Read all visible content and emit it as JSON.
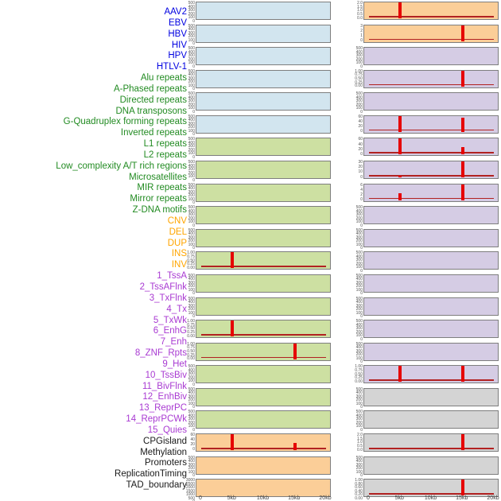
{
  "x_axis": {
    "ticks": [
      "0",
      "5kb",
      "10kb",
      "15kb",
      "20kb"
    ],
    "range_kb": [
      0,
      20
    ]
  },
  "colors": {
    "spike": "#e60000",
    "baseline": "#b22222",
    "panel_border": "#7e7e7e",
    "tick_text": "#555555",
    "categories": {
      "virus": {
        "label": "#0000e0",
        "panel": "#d2e5ef"
      },
      "repeat": {
        "label": "#228b22",
        "panel": "#cde0a2"
      },
      "variant": {
        "label": "#ffa500",
        "panel": "#fbce98"
      },
      "chromatin_state": {
        "label": "#a93ad2",
        "panel": "#d5cce4"
      },
      "other": {
        "label": "#1a1a1a",
        "panel": "#d4d4d4"
      }
    }
  },
  "chart_data": {
    "type": "bar",
    "description": "Genomic feature annotation tracks over a 0-20kb window; red bars mark feature hits near ~5kb and ~15kb; left column = tracks 1-22, right column = tracks 23-44",
    "x_ticks": [
      "0",
      "5kb",
      "10kb",
      "15kb",
      "20kb"
    ],
    "x_range_kb": [
      0,
      20
    ],
    "tracks": [
      {
        "label": "AAV2",
        "category": "virus",
        "column": "left",
        "yticks": [
          "500",
          "400",
          "300",
          "200",
          "100",
          "0"
        ],
        "spikes": [],
        "baseline": false
      },
      {
        "label": "EBV",
        "category": "virus",
        "column": "left",
        "yticks": [
          "500",
          "400",
          "300",
          "200",
          "100",
          "0"
        ],
        "spikes": [],
        "baseline": false
      },
      {
        "label": "HBV",
        "category": "virus",
        "column": "left",
        "yticks": [
          "500",
          "400",
          "300",
          "200",
          "100",
          "0"
        ],
        "spikes": [],
        "baseline": false
      },
      {
        "label": "HIV",
        "category": "virus",
        "column": "left",
        "yticks": [
          "500",
          "400",
          "300",
          "200",
          "100",
          "0"
        ],
        "spikes": [],
        "baseline": false
      },
      {
        "label": "HPV",
        "category": "virus",
        "column": "left",
        "yticks": [
          "500",
          "400",
          "300",
          "200",
          "100",
          "0"
        ],
        "spikes": [],
        "baseline": false
      },
      {
        "label": "HTLV-1",
        "category": "virus",
        "column": "left",
        "yticks": [
          "500",
          "400",
          "300",
          "200",
          "100",
          "0"
        ],
        "spikes": [],
        "baseline": false
      },
      {
        "label": "Alu repeats",
        "category": "repeat",
        "column": "left",
        "yticks": [
          "500",
          "400",
          "300",
          "200",
          "100",
          "0"
        ],
        "spikes": [],
        "baseline": false
      },
      {
        "label": "A-Phased repeats",
        "category": "repeat",
        "column": "left",
        "yticks": [
          "500",
          "400",
          "300",
          "200",
          "100",
          "0"
        ],
        "spikes": [],
        "baseline": false
      },
      {
        "label": "Directed repeats",
        "category": "repeat",
        "column": "left",
        "yticks": [
          "500",
          "400",
          "300",
          "200",
          "100",
          "0"
        ],
        "spikes": [],
        "baseline": false
      },
      {
        "label": "DNA transposons",
        "category": "repeat",
        "column": "left",
        "yticks": [
          "500",
          "400",
          "300",
          "200",
          "100",
          "0"
        ],
        "spikes": [],
        "baseline": false
      },
      {
        "label": "G-Quadruplex forming repeats",
        "category": "repeat",
        "column": "left",
        "yticks": [
          "500",
          "400",
          "300",
          "200",
          "100",
          "0"
        ],
        "spikes": [],
        "baseline": false
      },
      {
        "label": "Inverted repeats",
        "category": "repeat",
        "column": "left",
        "yticks": [
          "1.00",
          "0.75",
          "0.50",
          "0.25",
          "0.00"
        ],
        "spikes": [
          {
            "kb": 5,
            "h": 1.0
          }
        ],
        "baseline": true
      },
      {
        "label": "L1 repeats",
        "category": "repeat",
        "column": "left",
        "yticks": [
          "500",
          "400",
          "300",
          "200",
          "100",
          "0"
        ],
        "spikes": [],
        "baseline": false
      },
      {
        "label": "L2 repeats",
        "category": "repeat",
        "column": "left",
        "yticks": [
          "500",
          "400",
          "300",
          "200",
          "100",
          "0"
        ],
        "spikes": [],
        "baseline": false
      },
      {
        "label": "Low_complexity A/T rich regions",
        "category": "repeat",
        "column": "left",
        "yticks": [
          "1.00",
          "0.75",
          "0.50",
          "0.25",
          "0.00"
        ],
        "spikes": [
          {
            "kb": 5,
            "h": 1.0
          }
        ],
        "baseline": true
      },
      {
        "label": "Microsatellites",
        "category": "repeat",
        "column": "left",
        "yticks": [
          "1.00",
          "0.75",
          "0.50",
          "0.25",
          "0.00"
        ],
        "spikes": [
          {
            "kb": 15,
            "h": 1.0
          }
        ],
        "baseline": true
      },
      {
        "label": "MIR repeats",
        "category": "repeat",
        "column": "left",
        "yticks": [
          "500",
          "400",
          "300",
          "200",
          "100",
          "0"
        ],
        "spikes": [],
        "baseline": false
      },
      {
        "label": "Mirror repeats",
        "category": "repeat",
        "column": "left",
        "yticks": [
          "500",
          "400",
          "300",
          "200",
          "100",
          "0"
        ],
        "spikes": [],
        "baseline": false
      },
      {
        "label": "Z-DNA motifs",
        "category": "repeat",
        "column": "left",
        "yticks": [
          "500",
          "400",
          "300",
          "200",
          "100",
          "0"
        ],
        "spikes": [],
        "baseline": false
      },
      {
        "label": "CNV",
        "category": "variant",
        "column": "left",
        "yticks": [
          "60",
          "40",
          "20",
          "0"
        ],
        "spikes": [
          {
            "kb": 5,
            "h": 1.0
          },
          {
            "kb": 15,
            "h": 0.45
          }
        ],
        "baseline": true
      },
      {
        "label": "DEL",
        "category": "variant",
        "column": "left",
        "yticks": [
          "500",
          "400",
          "300",
          "200",
          "100",
          "0"
        ],
        "spikes": [],
        "baseline": false
      },
      {
        "label": "DUP",
        "category": "variant",
        "column": "left",
        "yticks": [
          "3000",
          "2500",
          "2000",
          "1500",
          "1000",
          "500",
          "0"
        ],
        "spikes": [],
        "baseline": false
      },
      {
        "label": "INS",
        "category": "variant",
        "column": "right",
        "yticks": [
          "2.0",
          "1.5",
          "1.0",
          "0.5",
          "0.0"
        ],
        "spikes": [
          {
            "kb": 5,
            "h": 1.0
          }
        ],
        "baseline": true
      },
      {
        "label": "INV",
        "category": "variant",
        "column": "right",
        "yticks": [
          "3",
          "2",
          "1",
          "0"
        ],
        "spikes": [
          {
            "kb": 15,
            "h": 1.0
          }
        ],
        "baseline": true
      },
      {
        "label": "1_TssA",
        "category": "chromatin_state",
        "column": "right",
        "yticks": [
          "500",
          "400",
          "300",
          "200",
          "100",
          "0"
        ],
        "spikes": [],
        "baseline": false
      },
      {
        "label": "2_TssAFlnk",
        "category": "chromatin_state",
        "column": "right",
        "yticks": [
          "1.00",
          "0.75",
          "0.50",
          "0.25",
          "0.00"
        ],
        "spikes": [
          {
            "kb": 15,
            "h": 1.0
          }
        ],
        "baseline": true
      },
      {
        "label": "3_TxFlnk",
        "category": "chromatin_state",
        "column": "right",
        "yticks": [
          "500",
          "400",
          "300",
          "200",
          "100",
          "0"
        ],
        "spikes": [],
        "baseline": false
      },
      {
        "label": "4_Tx",
        "category": "chromatin_state",
        "column": "right",
        "yticks": [
          "60",
          "40",
          "20",
          "0"
        ],
        "spikes": [
          {
            "kb": 5,
            "h": 1.0
          },
          {
            "kb": 15,
            "h": 0.88
          }
        ],
        "baseline": true
      },
      {
        "label": "5_TxWk",
        "category": "chromatin_state",
        "column": "right",
        "yticks": [
          "60",
          "40",
          "20",
          "0"
        ],
        "spikes": [
          {
            "kb": 5,
            "h": 1.0
          },
          {
            "kb": 15,
            "h": 0.45
          }
        ],
        "baseline": true
      },
      {
        "label": "6_EnhG",
        "category": "chromatin_state",
        "column": "right",
        "yticks": [
          "30",
          "20",
          "10",
          "0"
        ],
        "spikes": [
          {
            "kb": 5,
            "h": 0.1
          },
          {
            "kb": 15,
            "h": 1.0
          }
        ],
        "baseline": true
      },
      {
        "label": "7_Enh",
        "category": "chromatin_state",
        "column": "right",
        "yticks": [
          "6",
          "4",
          "2",
          "0"
        ],
        "spikes": [
          {
            "kb": 5,
            "h": 0.42
          },
          {
            "kb": 15,
            "h": 1.0
          }
        ],
        "baseline": true
      },
      {
        "label": "8_ZNF_Rpts",
        "category": "chromatin_state",
        "column": "right",
        "yticks": [
          "500",
          "400",
          "300",
          "200",
          "100",
          "0"
        ],
        "spikes": [],
        "baseline": false
      },
      {
        "label": "9_Het",
        "category": "chromatin_state",
        "column": "right",
        "yticks": [
          "500",
          "400",
          "300",
          "200",
          "100",
          "0"
        ],
        "spikes": [],
        "baseline": false
      },
      {
        "label": "10_TssBiv",
        "category": "chromatin_state",
        "column": "right",
        "yticks": [
          "500",
          "400",
          "300",
          "200",
          "100",
          "0"
        ],
        "spikes": [],
        "baseline": false
      },
      {
        "label": "11_BivFlnk",
        "category": "chromatin_state",
        "column": "right",
        "yticks": [
          "500",
          "400",
          "300",
          "200",
          "100",
          "0"
        ],
        "spikes": [],
        "baseline": false
      },
      {
        "label": "12_EnhBiv",
        "category": "chromatin_state",
        "column": "right",
        "yticks": [
          "500",
          "400",
          "300",
          "200",
          "100",
          "0"
        ],
        "spikes": [],
        "baseline": false
      },
      {
        "label": "13_ReprPC",
        "category": "chromatin_state",
        "column": "right",
        "yticks": [
          "500",
          "400",
          "300",
          "200",
          "100",
          "0"
        ],
        "spikes": [],
        "baseline": false
      },
      {
        "label": "14_ReprPCWk",
        "category": "chromatin_state",
        "column": "right",
        "yticks": [
          "500",
          "400",
          "300",
          "200",
          "100",
          "0"
        ],
        "spikes": [],
        "baseline": false
      },
      {
        "label": "15_Quies",
        "category": "chromatin_state",
        "column": "right",
        "yticks": [
          "1.00",
          "0.75",
          "0.50",
          "0.25",
          "0.00"
        ],
        "spikes": [
          {
            "kb": 5,
            "h": 1.0
          },
          {
            "kb": 15,
            "h": 1.0
          }
        ],
        "baseline": true
      },
      {
        "label": "CPGisland",
        "category": "other",
        "column": "right",
        "yticks": [
          "500",
          "400",
          "300",
          "200",
          "100",
          "0"
        ],
        "spikes": [],
        "baseline": false
      },
      {
        "label": "Methylation",
        "category": "other",
        "column": "right",
        "yticks": [
          "500",
          "400",
          "300",
          "200",
          "100",
          "0"
        ],
        "spikes": [],
        "baseline": false
      },
      {
        "label": "Promoters",
        "category": "other",
        "column": "right",
        "yticks": [
          "2.0",
          "1.5",
          "1.0",
          "0.5",
          "0.0"
        ],
        "spikes": [
          {
            "kb": 15,
            "h": 1.0
          }
        ],
        "baseline": true
      },
      {
        "label": "ReplicationTiming",
        "category": "other",
        "column": "right",
        "yticks": [
          "500",
          "400",
          "300",
          "200",
          "100",
          "0"
        ],
        "spikes": [],
        "baseline": false
      },
      {
        "label": "TAD_boundary",
        "category": "other",
        "column": "right",
        "yticks": [
          "1.00",
          "0.80",
          "0.60",
          "0.40",
          "0.20",
          "0.00"
        ],
        "spikes": [
          {
            "kb": 15,
            "h": 1.0
          }
        ],
        "baseline": true
      }
    ]
  }
}
